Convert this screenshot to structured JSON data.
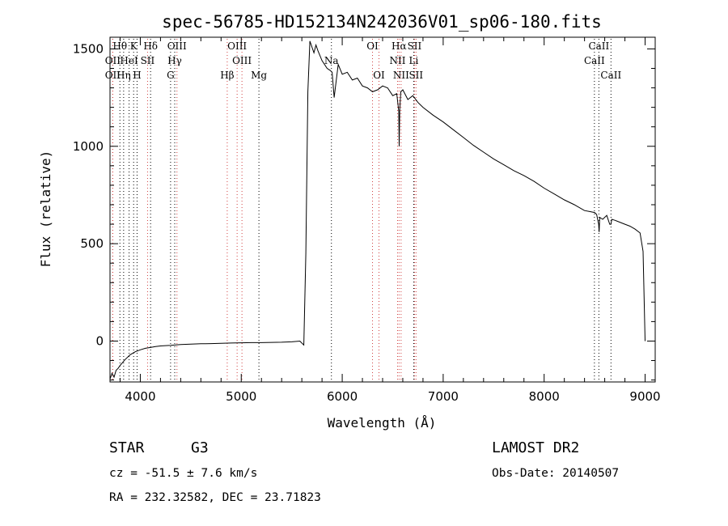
{
  "chart_data": {
    "type": "line",
    "title": "spec-56785-HD152134N242036V01_sp06-180.fits",
    "xlabel": "Wavelength (Å)",
    "ylabel": "Flux (relative)",
    "xlim": [
      3700,
      9100
    ],
    "ylim": [
      -210,
      1560
    ],
    "x_ticks": [
      4000,
      5000,
      6000,
      7000,
      8000,
      9000
    ],
    "y_ticks": [
      0,
      500,
      1000,
      1500
    ],
    "grid": false,
    "series": [
      {
        "color": "#000000",
        "x": [
          3700,
          3720,
          3740,
          3760,
          3780,
          3800,
          3850,
          3900,
          3950,
          4000,
          4050,
          4100,
          4150,
          4200,
          4300,
          4400,
          4500,
          4600,
          4700,
          4800,
          4900,
          5000,
          5100,
          5200,
          5300,
          5400,
          5500,
          5580,
          5620,
          5640,
          5660,
          5680,
          5700,
          5720,
          5740,
          5760,
          5800,
          5850,
          5880,
          5900,
          5920,
          5960,
          6000,
          6050,
          6100,
          6150,
          6200,
          6250,
          6300,
          6350,
          6400,
          6450,
          6500,
          6540,
          6560,
          6564,
          6570,
          6580,
          6600,
          6650,
          6700,
          6750,
          6800,
          6900,
          7000,
          7100,
          7200,
          7300,
          7400,
          7500,
          7600,
          7700,
          7800,
          7900,
          8000,
          8100,
          8200,
          8300,
          8400,
          8450,
          8500,
          8520,
          8540,
          8545,
          8550,
          8580,
          8620,
          8650,
          8662,
          8670,
          8700,
          8750,
          8800,
          8850,
          8900,
          8950,
          8980,
          9000
        ],
        "y": [
          -195,
          -165,
          -185,
          -150,
          -140,
          -125,
          -95,
          -70,
          -55,
          -45,
          -37,
          -33,
          -28,
          -25,
          -22,
          -18,
          -16,
          -14,
          -13,
          -12,
          -10,
          -9,
          -8,
          -8,
          -7,
          -6,
          -4,
          0,
          -20,
          450,
          1280,
          1540,
          1510,
          1480,
          1520,
          1490,
          1440,
          1400,
          1390,
          1380,
          1250,
          1420,
          1370,
          1380,
          1340,
          1350,
          1310,
          1300,
          1280,
          1290,
          1310,
          1300,
          1260,
          1270,
          1180,
          1000,
          1190,
          1280,
          1290,
          1240,
          1260,
          1225,
          1200,
          1160,
          1125,
          1085,
          1045,
          1005,
          970,
          935,
          905,
          875,
          850,
          820,
          785,
          755,
          725,
          700,
          670,
          665,
          660,
          650,
          600,
          560,
          635,
          625,
          645,
          600,
          600,
          625,
          620,
          610,
          600,
          590,
          575,
          555,
          460,
          0
        ]
      }
    ],
    "line_ids": [
      {
        "label": "Hθ",
        "x": 3798,
        "row": 0
      },
      {
        "label": "K",
        "x": 3934,
        "row": 0
      },
      {
        "label": "Hδ",
        "x": 4102,
        "row": 0
      },
      {
        "label": "OIII",
        "x": 4363,
        "row": 0
      },
      {
        "label": "OIII",
        "x": 4959,
        "row": 0
      },
      {
        "label": "OI",
        "x": 6300,
        "row": 0
      },
      {
        "label": "Hα",
        "x": 6563,
        "row": 0
      },
      {
        "label": "SII",
        "x": 6716,
        "row": 0
      },
      {
        "label": "CaII",
        "x": 8542,
        "row": 0
      },
      {
        "label": "OII",
        "x": 3727,
        "row": 1
      },
      {
        "label": "HeI",
        "x": 3889,
        "row": 1
      },
      {
        "label": "SII",
        "x": 4072,
        "row": 1
      },
      {
        "label": "Hγ",
        "x": 4341,
        "row": 1
      },
      {
        "label": "OIII",
        "x": 5007,
        "row": 1
      },
      {
        "label": "Na",
        "x": 5893,
        "row": 1
      },
      {
        "label": "NII",
        "x": 6548,
        "row": 1
      },
      {
        "label": "Li",
        "x": 6708,
        "row": 1
      },
      {
        "label": "CaII",
        "x": 8498,
        "row": 1
      },
      {
        "label": "OII",
        "x": 3727,
        "row": 2
      },
      {
        "label": "Hη",
        "x": 3835,
        "row": 2
      },
      {
        "label": "H",
        "x": 3968,
        "row": 2
      },
      {
        "label": "G",
        "x": 4300,
        "row": 2
      },
      {
        "label": "Hβ",
        "x": 4861,
        "row": 2
      },
      {
        "label": "Mg",
        "x": 5175,
        "row": 2
      },
      {
        "label": "OI",
        "x": 6364,
        "row": 2
      },
      {
        "label": "NII",
        "x": 6583,
        "row": 2
      },
      {
        "label": "SII",
        "x": 6731,
        "row": 2
      },
      {
        "label": "CaII",
        "x": 8662,
        "row": 2
      }
    ],
    "line_colors": {
      "emission": "#d04040",
      "absorption": "#000000"
    }
  },
  "info": {
    "class": "STAR",
    "subclass": "G3",
    "survey": "LAMOST DR2",
    "cz": "cz = -51.5 ± 7.6 km/s",
    "obsdate": "Obs-Date: 20140507",
    "radec": "RA = 232.32582, DEC =  23.71823"
  }
}
